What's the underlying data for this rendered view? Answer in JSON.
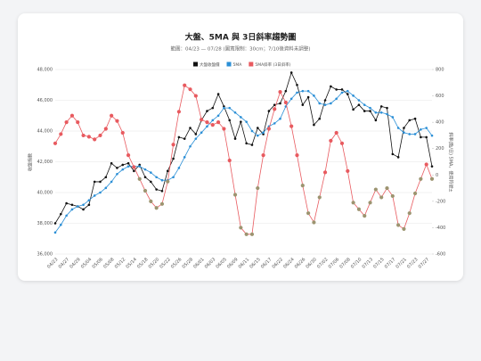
{
  "chart_data": {
    "type": "line",
    "title": "大盤、5MA 與 3日斜率趨勢圖",
    "subtitle": "範圍：04/23 — 07/28 (圖寬限制：30cm；7/10後資料未調整)",
    "ylabel": "收盤指數",
    "y2label": "斜率(點/日) 5MA，使用符號±",
    "categories": [
      "04/23",
      null,
      "04/27",
      null,
      "04/29",
      null,
      "05/04",
      null,
      "05/06",
      null,
      "05/08",
      null,
      "05/12",
      null,
      "05/14",
      null,
      "05/18",
      null,
      "05/20",
      null,
      "05/22",
      null,
      "05/26",
      null,
      "05/28",
      null,
      "06/01",
      null,
      "06/03",
      null,
      "06/05",
      null,
      "06/09",
      null,
      "06/11",
      null,
      "06/15",
      null,
      "06/17",
      null,
      "06/22",
      null,
      "06/24",
      null,
      "06/26",
      null,
      "06/30",
      null,
      "07/02",
      null,
      "07/06",
      null,
      "07/08",
      null,
      "07/10",
      null,
      "07/13",
      null,
      "07/15",
      null,
      "07/17",
      null,
      "07/21",
      null,
      "07/23",
      null,
      "07/27",
      null
    ],
    "series": [
      {
        "name": "大盤收盤價",
        "color": "#111111",
        "axis": "y",
        "values": [
          38000,
          38600,
          39300,
          39200,
          39100,
          38900,
          39200,
          40700,
          40700,
          41000,
          41900,
          41600,
          41800,
          41900,
          41400,
          41800,
          41000,
          40700,
          40200,
          40100,
          41400,
          42200,
          43600,
          43500,
          44200,
          43800,
          44700,
          45300,
          45500,
          46400,
          45600,
          44700,
          43500,
          44600,
          43200,
          43100,
          44200,
          43800,
          45300,
          45700,
          45800,
          46600,
          47800,
          47000,
          45700,
          46200,
          44400,
          44800,
          46000,
          46900,
          46700,
          46700,
          46400,
          45400,
          45700,
          45300,
          45300,
          44700,
          45600,
          45500,
          42500,
          42300,
          44200,
          44700,
          44800,
          43600,
          43600,
          41700
        ]
      },
      {
        "name": "5MA",
        "color": "#2b8fd6",
        "axis": "y",
        "values": [
          37400,
          37900,
          38500,
          38900,
          39100,
          39200,
          39500,
          39800,
          40000,
          40300,
          40700,
          41200,
          41500,
          41700,
          41700,
          41700,
          41500,
          41300,
          41000,
          40800,
          40800,
          41000,
          41600,
          42300,
          43000,
          43500,
          43900,
          44300,
          44700,
          45000,
          45500,
          45500,
          45200,
          44900,
          44600,
          44000,
          43700,
          43900,
          44300,
          44500,
          44800,
          45600,
          46100,
          46500,
          46600,
          46600,
          46300,
          45800,
          45700,
          45800,
          46100,
          46500,
          46600,
          46300,
          46000,
          45700,
          45500,
          45200,
          45200,
          45100,
          44900,
          44200,
          43900,
          43800,
          43800,
          44100,
          44200,
          43700
        ]
      },
      {
        "name": "5MA斜率 (3日斜率)",
        "color": "#e85a5f",
        "negative_color": "#9c9470",
        "axis": "y2",
        "values": [
          240,
          310,
          400,
          450,
          400,
          300,
          290,
          270,
          300,
          350,
          450,
          410,
          320,
          150,
          60,
          -30,
          -120,
          -200,
          -250,
          -220,
          -50,
          230,
          480,
          680,
          650,
          600,
          420,
          400,
          380,
          400,
          350,
          110,
          -150,
          -400,
          -450,
          -450,
          -100,
          150,
          350,
          500,
          630,
          550,
          370,
          150,
          -80,
          -290,
          -360,
          -170,
          20,
          260,
          320,
          240,
          30,
          -210,
          -260,
          -310,
          -210,
          -110,
          -170,
          -100,
          -160,
          -380,
          -410,
          -290,
          -140,
          -30,
          80,
          -30
        ]
      }
    ],
    "ylim": [
      36000,
      48000
    ],
    "yticks": [
      {
        "value": 36000,
        "label": "36,000"
      },
      {
        "value": 38000,
        "label": "38,000"
      },
      {
        "value": 40000,
        "label": "40,000"
      },
      {
        "value": 42000,
        "label": "42,000"
      },
      {
        "value": 44000,
        "label": "44,000"
      },
      {
        "value": 46000,
        "label": "46,000"
      },
      {
        "value": 48000,
        "label": "48,000"
      }
    ],
    "y2lim": [
      -600,
      800
    ],
    "y2ticks": [
      -600,
      -400,
      -200,
      0,
      200,
      400,
      600,
      800
    ],
    "grid": true
  }
}
